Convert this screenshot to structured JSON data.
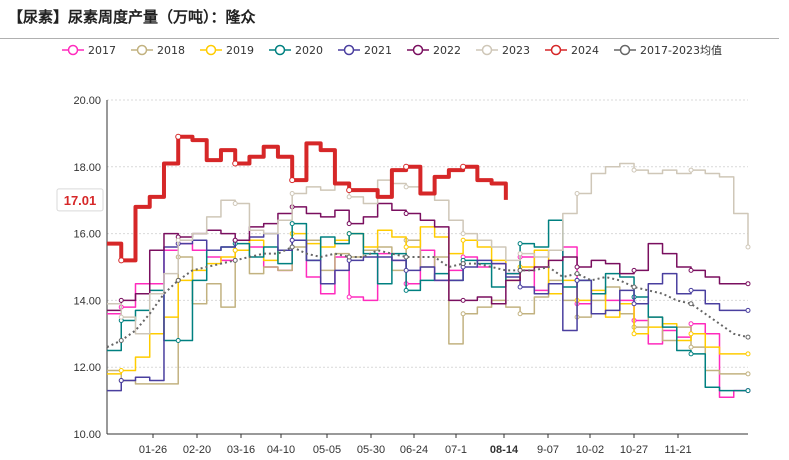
{
  "title": "【尿素】尿素周度产量（万吨）：隆众",
  "chart_data": {
    "type": "line",
    "title": "【尿素】尿素周度产量（万吨）：隆众",
    "ylim": [
      10,
      20
    ],
    "yticks": [
      "10.00",
      "12.00",
      "14.00",
      "16.00",
      "18.00",
      "20.00"
    ],
    "xticks": [
      "01-26",
      "02-20",
      "03-16",
      "04-10",
      "05-05",
      "05-30",
      "06-24",
      "07-1",
      "08-14",
      "9-07",
      "10-02",
      "10-27",
      "11-21"
    ],
    "highlight_x": "08-14",
    "current_value_label": "17.01",
    "series": [
      {
        "name": "2017",
        "color": "#ff2bbd",
        "values": [
          13.6,
          13.8,
          14.5,
          14.5,
          15.5,
          15.7,
          15.5,
          15.3,
          15.2,
          15.8,
          15.6,
          15.0,
          14.9,
          15.8,
          14.7,
          14.2,
          15.3,
          14.1,
          14.0,
          15.4,
          15.2,
          14.5,
          15.5,
          14.6,
          14.9,
          15.3,
          15.0,
          15.1,
          14.8,
          15.3,
          14.3,
          14.5,
          15.6,
          13.9,
          14.2,
          14.0,
          14.0,
          13.4,
          12.7,
          13.1,
          12.9,
          13.3,
          13.0,
          11.1,
          11.3,
          11.3
        ]
      },
      {
        "name": "2018",
        "color": "#c2b280",
        "values": [
          11.9,
          11.6,
          11.5,
          11.5,
          11.5,
          15.3,
          13.9,
          14.5,
          13.8,
          15.5,
          14.8,
          15.0,
          14.9,
          15.6,
          15.8,
          14.9,
          15.4,
          15.3,
          15.5,
          15.6,
          14.9,
          15.8,
          15.0,
          15.3,
          12.7,
          13.6,
          13.8,
          14.0,
          13.8,
          13.6,
          14.1,
          14.6,
          14.0,
          13.5,
          14.0,
          14.4,
          13.6,
          13.2,
          13.5,
          12.8,
          13.2,
          12.6,
          11.9,
          11.8,
          11.8,
          11.8
        ]
      },
      {
        "name": "2019",
        "color": "#ffcc00",
        "values": [
          11.8,
          11.9,
          12.3,
          13.0,
          13.5,
          14.6,
          14.9,
          15.1,
          15.3,
          15.5,
          15.8,
          15.2,
          15.5,
          16.0,
          15.7,
          15.6,
          15.8,
          16.0,
          15.6,
          16.1,
          15.9,
          15.6,
          16.2,
          15.9,
          15.4,
          15.8,
          15.6,
          15.2,
          14.6,
          15.0,
          15.5,
          14.2,
          14.6,
          14.0,
          14.3,
          13.5,
          13.9,
          13.0,
          13.2,
          13.3,
          12.8,
          13.0,
          12.6,
          12.4,
          12.4,
          12.4
        ]
      },
      {
        "name": "2020",
        "color": "#008080",
        "values": [
          12.5,
          13.4,
          13.7,
          14.3,
          12.8,
          12.8,
          14.6,
          15.5,
          15.6,
          15.7,
          15.3,
          15.6,
          15.1,
          16.3,
          15.2,
          15.9,
          15.7,
          16.0,
          15.4,
          14.5,
          15.4,
          14.3,
          14.6,
          14.8,
          14.6,
          15.2,
          15.1,
          14.4,
          14.8,
          15.7,
          15.6,
          16.4,
          14.4,
          14.6,
          14.2,
          14.8,
          14.7,
          14.1,
          13.5,
          13.2,
          12.5,
          12.4,
          11.4,
          11.3,
          11.3,
          11.3
        ]
      },
      {
        "name": "2021",
        "color": "#4a3f9f",
        "values": [
          11.3,
          11.6,
          11.7,
          11.6,
          15.6,
          15.7,
          15.8,
          15.5,
          15.6,
          15.8,
          15.9,
          16.0,
          15.5,
          15.8,
          15.2,
          14.5,
          14.9,
          15.2,
          15.3,
          15.3,
          15.2,
          14.9,
          15.0,
          14.6,
          14.6,
          15.0,
          15.2,
          15.1,
          14.7,
          14.4,
          14.2,
          14.5,
          13.1,
          14.6,
          13.6,
          13.7,
          14.3,
          13.9,
          14.5,
          14.8,
          14.2,
          14.3,
          13.9,
          13.7,
          13.7,
          13.7
        ]
      },
      {
        "name": "2022",
        "color": "#7a0f5f",
        "values": [
          13.7,
          14.0,
          14.2,
          15.5,
          16.0,
          15.9,
          16.0,
          16.1,
          16.0,
          15.8,
          16.2,
          16.3,
          16.6,
          16.8,
          16.6,
          16.5,
          16.7,
          16.3,
          16.5,
          16.9,
          16.7,
          16.6,
          16.4,
          16.2,
          14.0,
          14.0,
          14.1,
          13.9,
          14.6,
          14.9,
          15.0,
          15.2,
          15.3,
          15.0,
          15.2,
          15.1,
          14.8,
          14.9,
          15.7,
          15.4,
          15.0,
          14.9,
          14.7,
          14.5,
          14.5,
          14.5
        ]
      },
      {
        "name": "2023",
        "color": "#cfc7b8",
        "values": [
          13.9,
          13.5,
          13.0,
          14.2,
          14.8,
          15.8,
          16.0,
          16.5,
          17.0,
          16.9,
          16.1,
          16.0,
          16.4,
          17.2,
          17.4,
          17.3,
          17.5,
          17.1,
          16.9,
          17.6,
          17.5,
          17.4,
          17.2,
          17.0,
          16.4,
          16.0,
          15.8,
          15.6,
          15.2,
          15.4,
          15.3,
          15.5,
          16.6,
          17.2,
          17.8,
          18.0,
          18.1,
          17.9,
          17.8,
          17.9,
          17.8,
          17.9,
          17.8,
          17.7,
          16.6,
          15.6
        ]
      },
      {
        "name": "2024",
        "color": "#d62728",
        "values": [
          15.7,
          15.2,
          16.8,
          17.1,
          18.1,
          18.9,
          18.8,
          18.2,
          18.5,
          18.1,
          18.3,
          18.6,
          18.3,
          17.6,
          18.7,
          18.5,
          17.5,
          17.3,
          17.3,
          17.1,
          17.9,
          18.0,
          17.2,
          17.7,
          17.9,
          18.0,
          17.6,
          17.5,
          17.01
        ]
      },
      {
        "name": "2017-2023均值",
        "color": "#666666",
        "values": [
          12.6,
          12.8,
          13.1,
          13.6,
          14.2,
          14.6,
          14.9,
          15.0,
          15.1,
          15.2,
          15.3,
          15.4,
          15.4,
          15.6,
          15.4,
          15.3,
          15.4,
          15.3,
          15.3,
          15.5,
          15.4,
          15.3,
          15.3,
          15.3,
          15.0,
          15.1,
          15.1,
          15.0,
          14.9,
          14.9,
          14.9,
          15.0,
          14.7,
          14.8,
          14.6,
          14.7,
          14.6,
          14.4,
          14.3,
          14.2,
          14.0,
          13.9,
          13.6,
          13.3,
          13.0,
          12.9
        ]
      }
    ]
  }
}
